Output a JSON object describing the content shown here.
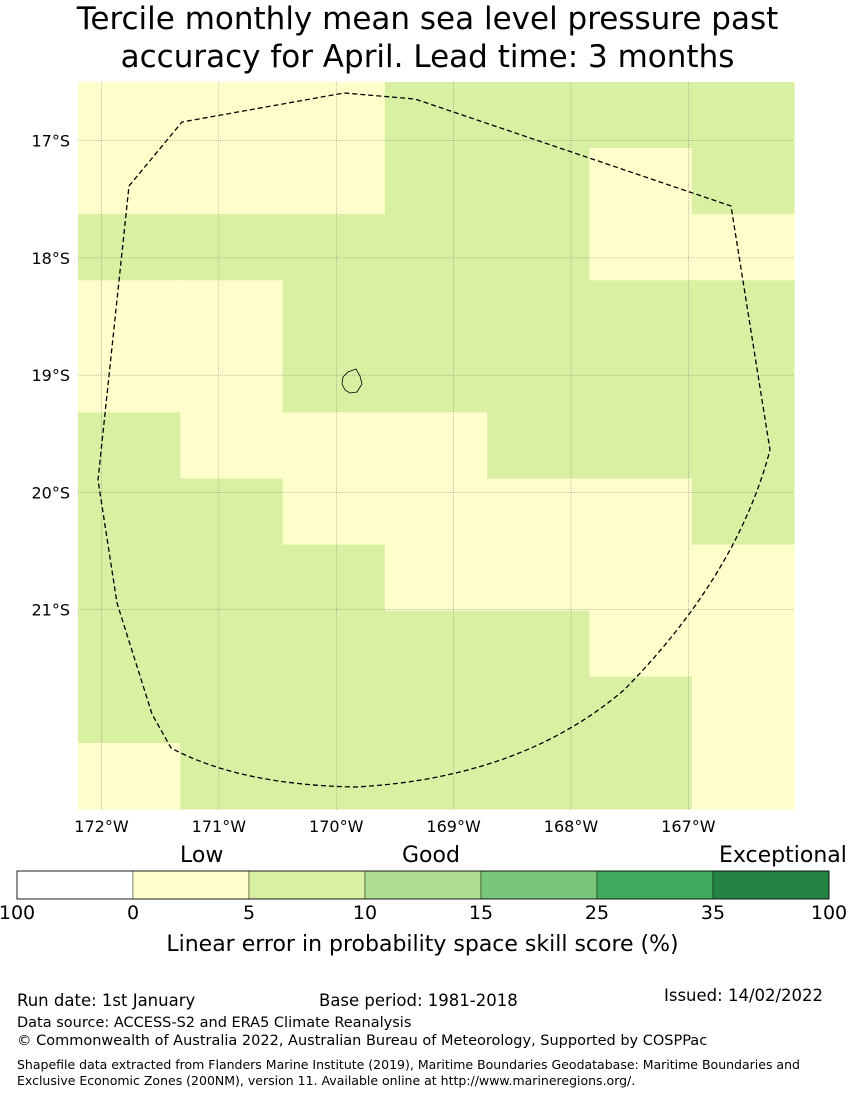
{
  "title": {
    "line1": "Tercile monthly mean sea level pressure past",
    "line2": "accuracy for April. Lead time: 3 months"
  },
  "map": {
    "lat_labels": [
      "17°S",
      "18°S",
      "19°S",
      "20°S",
      "21°S"
    ],
    "lon_labels": [
      "172°W",
      "171°W",
      "170°W",
      "169°W",
      "168°W",
      "167°W"
    ],
    "lon_range": [
      -172.2,
      -166.1
    ],
    "lat_range": [
      -22.7,
      -16.5
    ],
    "colors": {
      "low": "#ffffcc",
      "good": "#d9f0a3"
    },
    "cell_size_deg": [
      0.833,
      0.555
    ],
    "grid_cols": 7,
    "grid_rows": 11,
    "cells": [
      [
        "low",
        "low",
        "low",
        "good",
        "good",
        "good",
        "good"
      ],
      [
        "low",
        "low",
        "low",
        "good",
        "good",
        "low",
        "good"
      ],
      [
        "good",
        "good",
        "good",
        "good",
        "good",
        "low",
        "low"
      ],
      [
        "low",
        "low",
        "good",
        "good",
        "good",
        "good",
        "good"
      ],
      [
        "low",
        "low",
        "good",
        "good",
        "good",
        "good",
        "good"
      ],
      [
        "good",
        "low",
        "low",
        "low",
        "good",
        "good",
        "good"
      ],
      [
        "good",
        "good",
        "low",
        "low",
        "low",
        "low",
        "good"
      ],
      [
        "good",
        "good",
        "good",
        "low",
        "low",
        "low",
        "low"
      ],
      [
        "good",
        "good",
        "good",
        "good",
        "good",
        "low",
        "low"
      ],
      [
        "good",
        "good",
        "good",
        "good",
        "good",
        "good",
        "low"
      ],
      [
        "low",
        "good",
        "good",
        "good",
        "good",
        "good",
        "low"
      ]
    ],
    "zone_boundary": "dashed"
  },
  "legend": {
    "categories": [
      "Low",
      "Good",
      "Exceptional"
    ],
    "colors": [
      "#ffffff",
      "#ffffcc",
      "#d9f0a3",
      "#addd8e",
      "#78c679",
      "#41ab5d",
      "#238443"
    ],
    "ticks": [
      "100",
      "0",
      "5",
      "10",
      "15",
      "25",
      "35",
      "100"
    ],
    "caption": "Linear error in probability space skill score (%)"
  },
  "footer": {
    "run_date": "Run date: 1st January",
    "base_period": "Base period: 1981-2018",
    "issued": "Issued: 14/02/2022",
    "data_source": "Data source: ACCESS-S2 and ERA5 Climate Reanalysis",
    "copyright": "© Commonwealth of Australia 2022, Australian Bureau of Meteorology, Supported by COSPPac",
    "shapefile": "Shapefile data extracted from Flanders Marine Institute (2019), Maritime Boundaries Geodatabase: Maritime Boundaries and Exclusive Economic Zones (200NM), version 11. Available online at http://www.marineregions.org/."
  }
}
